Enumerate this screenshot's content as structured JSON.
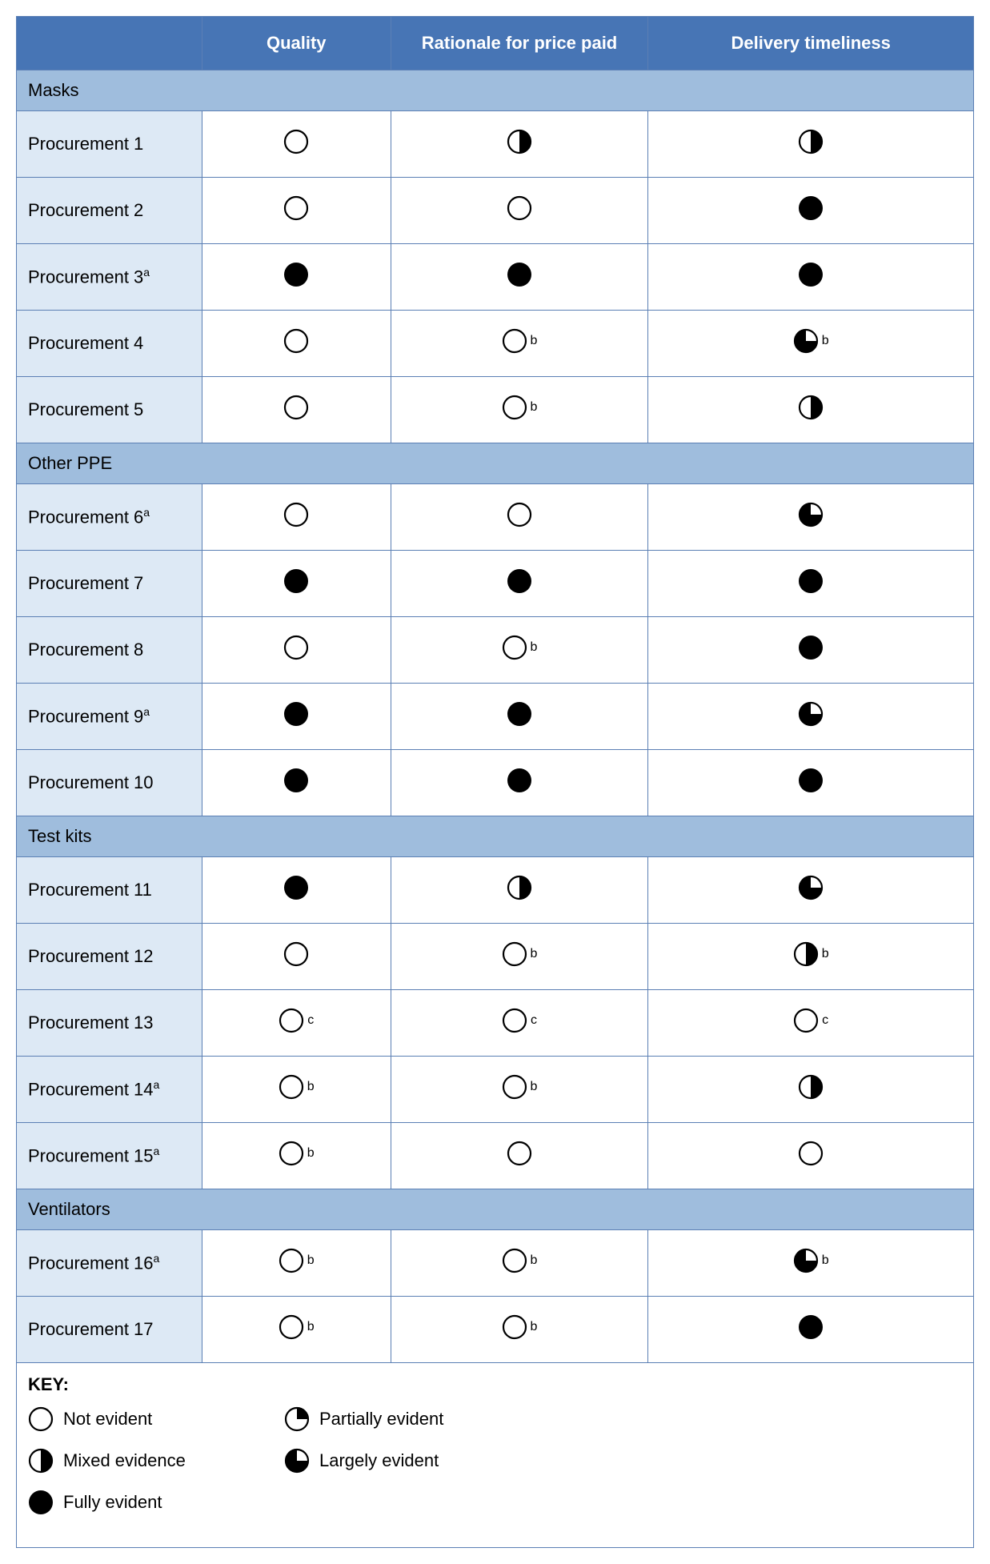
{
  "columns": {
    "quality": "Quality",
    "rationale": "Rationale for price paid",
    "delivery": "Delivery timeliness"
  },
  "icon_levels": {
    "not": "not-evident",
    "partial": "partially-evident",
    "mixed": "mixed-evidence",
    "large": "largely-evident",
    "full": "fully-evident"
  },
  "colors": {
    "header_bg": "#4775b5",
    "header_fg": "#ffffff",
    "category_bg": "#9fbddd",
    "label_bg": "#dde9f5",
    "border": "#5b7fb4",
    "icon_stroke": "#000000",
    "icon_fill": "#000000"
  },
  "categories": [
    {
      "name": "Masks",
      "rows": [
        {
          "label": "Procurement 1",
          "sup": "",
          "quality": {
            "level": "not"
          },
          "rationale": {
            "level": "mixed"
          },
          "delivery": {
            "level": "mixed"
          }
        },
        {
          "label": "Procurement 2",
          "sup": "",
          "quality": {
            "level": "not"
          },
          "rationale": {
            "level": "not"
          },
          "delivery": {
            "level": "full"
          }
        },
        {
          "label": "Procurement 3",
          "sup": "a",
          "quality": {
            "level": "full"
          },
          "rationale": {
            "level": "full"
          },
          "delivery": {
            "level": "full"
          }
        },
        {
          "label": "Procurement 4",
          "sup": "",
          "quality": {
            "level": "not"
          },
          "rationale": {
            "level": "not",
            "note": "b"
          },
          "delivery": {
            "level": "large",
            "note": "b"
          }
        },
        {
          "label": "Procurement 5",
          "sup": "",
          "quality": {
            "level": "not"
          },
          "rationale": {
            "level": "not",
            "note": "b"
          },
          "delivery": {
            "level": "mixed"
          }
        }
      ]
    },
    {
      "name": "Other PPE",
      "rows": [
        {
          "label": "Procurement 6",
          "sup": "a",
          "quality": {
            "level": "not"
          },
          "rationale": {
            "level": "not"
          },
          "delivery": {
            "level": "large"
          }
        },
        {
          "label": "Procurement 7",
          "sup": "",
          "quality": {
            "level": "full"
          },
          "rationale": {
            "level": "full"
          },
          "delivery": {
            "level": "full"
          }
        },
        {
          "label": "Procurement 8",
          "sup": "",
          "quality": {
            "level": "not"
          },
          "rationale": {
            "level": "not",
            "note": "b"
          },
          "delivery": {
            "level": "full"
          }
        },
        {
          "label": "Procurement 9",
          "sup": "a",
          "quality": {
            "level": "full"
          },
          "rationale": {
            "level": "full"
          },
          "delivery": {
            "level": "large"
          }
        },
        {
          "label": "Procurement 10",
          "sup": "",
          "quality": {
            "level": "full"
          },
          "rationale": {
            "level": "full"
          },
          "delivery": {
            "level": "full"
          }
        }
      ]
    },
    {
      "name": "Test kits",
      "rows": [
        {
          "label": "Procurement 11",
          "sup": "",
          "quality": {
            "level": "full"
          },
          "rationale": {
            "level": "mixed"
          },
          "delivery": {
            "level": "large"
          }
        },
        {
          "label": "Procurement 12",
          "sup": "",
          "quality": {
            "level": "not"
          },
          "rationale": {
            "level": "not",
            "note": "b"
          },
          "delivery": {
            "level": "mixed",
            "note": "b"
          }
        },
        {
          "label": "Procurement 13",
          "sup": "",
          "quality": {
            "level": "not",
            "note": "c"
          },
          "rationale": {
            "level": "not",
            "note": "c"
          },
          "delivery": {
            "level": "not",
            "note": "c"
          }
        },
        {
          "label": "Procurement 14",
          "sup": "a",
          "quality": {
            "level": "not",
            "note": "b"
          },
          "rationale": {
            "level": "not",
            "note": "b"
          },
          "delivery": {
            "level": "mixed"
          }
        },
        {
          "label": "Procurement 15",
          "sup": "a",
          "quality": {
            "level": "not",
            "note": "b"
          },
          "rationale": {
            "level": "not"
          },
          "delivery": {
            "level": "not"
          }
        }
      ]
    },
    {
      "name": "Ventilators",
      "rows": [
        {
          "label": "Procurement 16",
          "sup": "a",
          "quality": {
            "level": "not",
            "note": "b"
          },
          "rationale": {
            "level": "not",
            "note": "b"
          },
          "delivery": {
            "level": "large",
            "note": "b"
          }
        },
        {
          "label": "Procurement 17",
          "sup": "",
          "quality": {
            "level": "not",
            "note": "b"
          },
          "rationale": {
            "level": "not",
            "note": "b"
          },
          "delivery": {
            "level": "full"
          }
        }
      ]
    }
  ],
  "key": {
    "title": "KEY:",
    "items": [
      {
        "level": "not",
        "label": "Not evident"
      },
      {
        "level": "partial",
        "label": "Partially evident"
      },
      {
        "level": "mixed",
        "label": "Mixed evidence"
      },
      {
        "level": "large",
        "label": "Largely evident"
      },
      {
        "level": "full",
        "label": "Fully evident"
      }
    ]
  }
}
